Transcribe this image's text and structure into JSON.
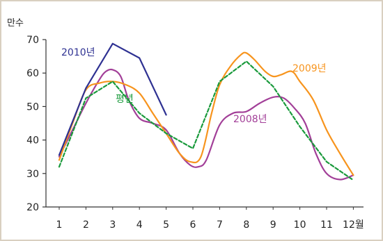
{
  "chart_data": {
    "type": "line",
    "ylabel": "만수",
    "xlabel": "",
    "x_unit_suffix": "월",
    "ylim": [
      20,
      70
    ],
    "yticks": [
      20,
      30,
      40,
      50,
      60,
      70
    ],
    "x": [
      1,
      2,
      3,
      4,
      5,
      6,
      7,
      8,
      9,
      10,
      11,
      12
    ],
    "grid": false,
    "series": [
      {
        "name": "2010년",
        "color": "#2e3192",
        "style": "solid",
        "x": [
          1,
          2,
          3,
          4,
          5
        ],
        "values": [
          35.5,
          55.5,
          68.8,
          64.5,
          47.5
        ]
      },
      {
        "name": "평년",
        "color": "#1a9a3c",
        "style": "dashed",
        "x": [
          1,
          2,
          3,
          4,
          5,
          6,
          7,
          8,
          9,
          10,
          11,
          12
        ],
        "values": [
          32.0,
          52.5,
          57.5,
          48.0,
          42.0,
          37.5,
          57.5,
          63.5,
          56.0,
          44.0,
          33.5,
          28.0
        ]
      },
      {
        "name": "2009년",
        "color": "#f7941d",
        "style": "solid",
        "x": [
          1,
          1.5,
          2,
          2.5,
          3,
          3.5,
          4,
          4.5,
          5,
          5.5,
          5.9,
          6.3,
          6.7,
          7,
          7.4,
          7.8,
          8,
          8.3,
          8.7,
          9,
          9.3,
          9.7,
          10,
          10.5,
          11,
          11.5,
          12
        ],
        "values": [
          34.0,
          45.0,
          55.0,
          57.0,
          57.5,
          56.5,
          54.0,
          48.0,
          42.0,
          36.0,
          33.5,
          35.0,
          48.0,
          56.5,
          62.0,
          65.5,
          66.0,
          64.0,
          60.5,
          59.0,
          59.5,
          60.5,
          57.5,
          52.0,
          43.0,
          36.0,
          29.5
        ]
      },
      {
        "name": "2008년",
        "color": "#a23f98",
        "style": "solid",
        "x": [
          1,
          1.5,
          2,
          2.5,
          2.75,
          3,
          3.3,
          3.6,
          4,
          4.5,
          5,
          5.5,
          5.9,
          6.2,
          6.5,
          7,
          7.5,
          8,
          8.5,
          9,
          9.4,
          9.8,
          10.2,
          10.6,
          11,
          11.5,
          12
        ],
        "values": [
          35.0,
          43.0,
          51.0,
          58.0,
          60.5,
          61.0,
          59.0,
          52.0,
          46.5,
          45.0,
          43.0,
          36.0,
          32.5,
          32.0,
          34.0,
          44.5,
          48.0,
          48.5,
          51.0,
          52.8,
          52.5,
          49.5,
          45.0,
          36.0,
          30.0,
          28.2,
          29.5
        ]
      }
    ]
  }
}
